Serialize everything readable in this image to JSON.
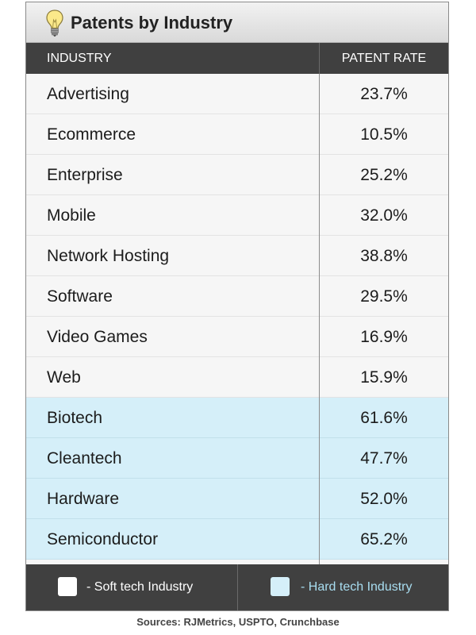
{
  "title": "Patents by Industry",
  "icon": "lightbulb-icon",
  "columns": {
    "industry": "INDUSTRY",
    "rate": "PATENT RATE"
  },
  "rows": [
    {
      "industry": "Advertising",
      "rate": "23.7%",
      "type": "soft"
    },
    {
      "industry": "Ecommerce",
      "rate": "10.5%",
      "type": "soft"
    },
    {
      "industry": "Enterprise",
      "rate": "25.2%",
      "type": "soft"
    },
    {
      "industry": "Mobile",
      "rate": "32.0%",
      "type": "soft"
    },
    {
      "industry": "Network Hosting",
      "rate": "38.8%",
      "type": "soft"
    },
    {
      "industry": "Software",
      "rate": "29.5%",
      "type": "soft"
    },
    {
      "industry": "Video Games",
      "rate": "16.9%",
      "type": "soft"
    },
    {
      "industry": "Web",
      "rate": "15.9%",
      "type": "soft"
    },
    {
      "industry": "Biotech",
      "rate": "61.6%",
      "type": "hard"
    },
    {
      "industry": "Cleantech",
      "rate": "47.7%",
      "type": "hard"
    },
    {
      "industry": "Hardware",
      "rate": "52.0%",
      "type": "hard"
    },
    {
      "industry": "Semiconductor",
      "rate": "65.2%",
      "type": "hard"
    }
  ],
  "legend": {
    "soft": {
      "label": "-  Soft tech Industry",
      "color": "#ffffff"
    },
    "hard": {
      "label": "-  Hard tech Industry",
      "color": "#d5eff9"
    }
  },
  "source": "Sources: RJMetrics, USPTO, Crunchbase",
  "colors": {
    "header_bg": "#404040",
    "soft_row": "#f6f6f6",
    "hard_row": "#d5eff9",
    "hard_text": "#a8ddf0"
  },
  "chart_data": {
    "type": "table",
    "title": "Patents by Industry",
    "columns": [
      "INDUSTRY",
      "PATENT RATE"
    ],
    "categories": [
      "Advertising",
      "Ecommerce",
      "Enterprise",
      "Mobile",
      "Network Hosting",
      "Software",
      "Video Games",
      "Web",
      "Biotech",
      "Cleantech",
      "Hardware",
      "Semiconductor"
    ],
    "values": [
      23.7,
      10.5,
      25.2,
      32.0,
      38.8,
      29.5,
      16.9,
      15.9,
      61.6,
      47.7,
      52.0,
      65.2
    ],
    "groups": [
      "soft",
      "soft",
      "soft",
      "soft",
      "soft",
      "soft",
      "soft",
      "soft",
      "hard",
      "hard",
      "hard",
      "hard"
    ],
    "legend": [
      "Soft tech Industry",
      "Hard tech Industry"
    ]
  }
}
